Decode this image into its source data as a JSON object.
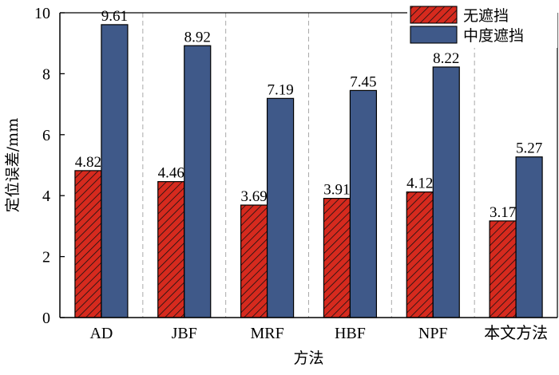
{
  "chart_data": {
    "type": "bar",
    "title": "",
    "xlabel": "方法",
    "ylabel": "定位误差/mm",
    "categories": [
      "AD",
      "JBF",
      "MRF",
      "HBF",
      "NPF",
      "本文方法"
    ],
    "series": [
      {
        "name": "无遮挡",
        "values": [
          4.82,
          4.46,
          3.69,
          3.91,
          4.12,
          3.17
        ],
        "color": "#d62a1e",
        "pattern": "hatch"
      },
      {
        "name": "中度遮挡",
        "values": [
          9.61,
          8.92,
          7.19,
          7.45,
          8.22,
          5.27
        ],
        "color": "#3f5989",
        "pattern": "solid"
      }
    ],
    "ylim": [
      0,
      10
    ],
    "yticks": [
      0,
      2,
      4,
      6,
      8,
      10
    ],
    "value_labels": [
      [
        "4.82",
        "4.46",
        "3.69",
        "3.91",
        "4.12",
        "3.17"
      ],
      [
        "9.61",
        "8.92",
        "7.19",
        "7.45",
        "8.22",
        "5.27"
      ]
    ],
    "grid": "vertical dashed separators between groups",
    "legend": "top-right"
  }
}
